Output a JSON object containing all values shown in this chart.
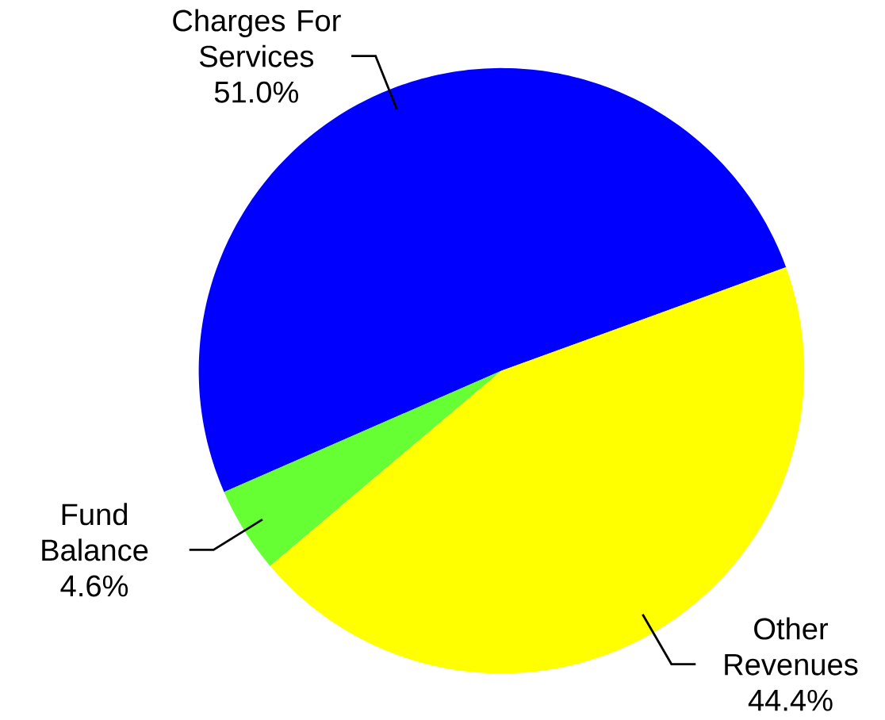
{
  "chart_data": {
    "type": "pie",
    "categories": [
      "Charges For Services",
      "Fund Balance",
      "Other Revenues"
    ],
    "values": [
      51.0,
      4.6,
      44.4
    ],
    "colors": [
      "#0000ff",
      "#66ff33",
      "#ffff00"
    ],
    "value_labels": [
      "51.0%",
      "4.6%",
      "44.4%"
    ]
  }
}
